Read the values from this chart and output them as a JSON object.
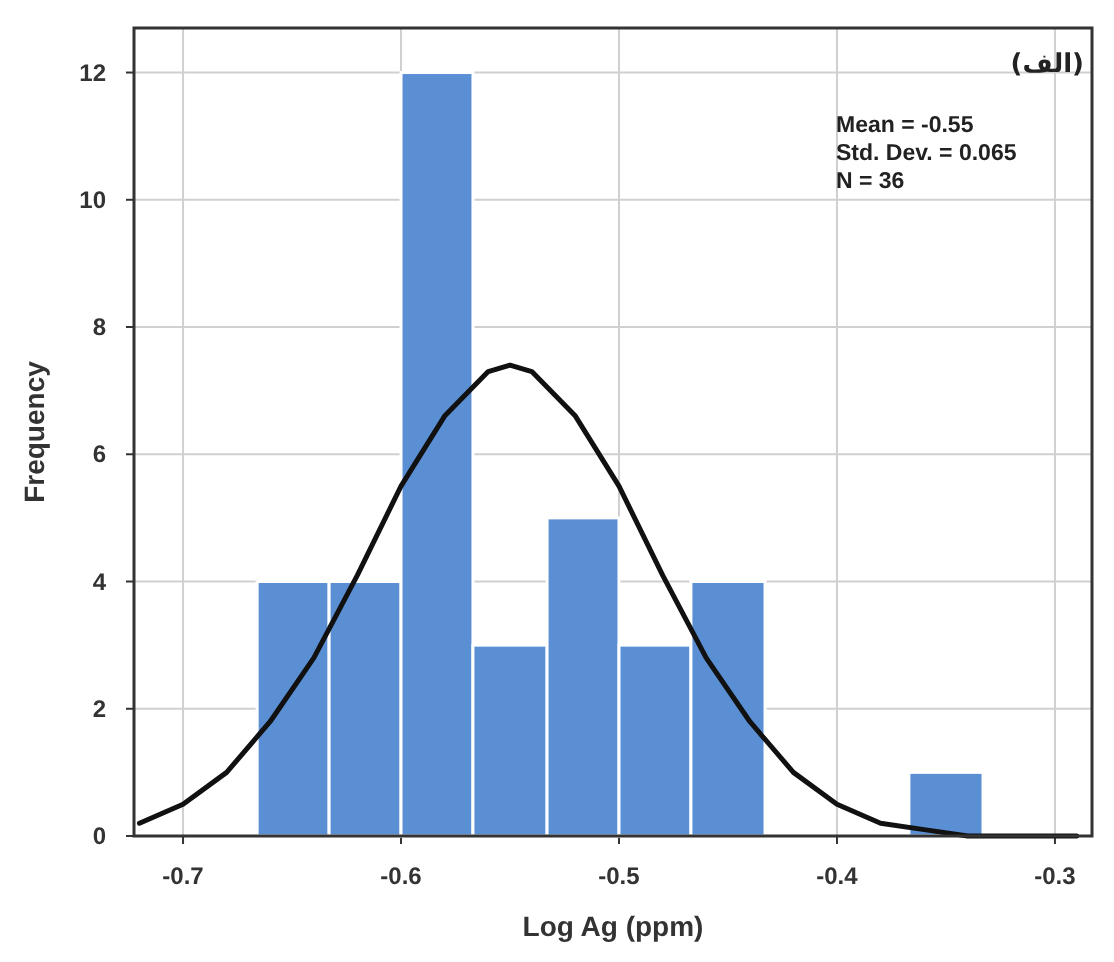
{
  "chart_data": {
    "type": "histogram",
    "xlabel": "Log Ag (ppm)",
    "ylabel": "Frequency",
    "series": [
      {
        "type": "histogram",
        "color": "#5b8fd4",
        "bins": [
          -0.666,
          -0.633,
          -0.6,
          -0.567,
          -0.533,
          -0.5,
          -0.467,
          -0.433
        ],
        "values": [
          4,
          4,
          12,
          3,
          5,
          3,
          4
        ]
      },
      {
        "type": "histogram",
        "color": "#5b8fd4",
        "bins": [
          -0.367,
          -0.333
        ],
        "values": [
          1
        ]
      },
      {
        "type": "line",
        "color": "#111111",
        "x": [
          -0.72,
          -0.7,
          -0.68,
          -0.66,
          -0.64,
          -0.62,
          -0.6,
          -0.58,
          -0.56,
          -0.55,
          -0.54,
          -0.52,
          -0.5,
          -0.48,
          -0.46,
          -0.44,
          -0.42,
          -0.4,
          -0.38,
          -0.36,
          -0.34,
          -0.32,
          -0.29
        ],
        "values": [
          0.2,
          0.5,
          1.0,
          1.8,
          2.8,
          4.1,
          5.5,
          6.6,
          7.3,
          7.4,
          7.3,
          6.6,
          5.5,
          4.1,
          2.8,
          1.8,
          1.0,
          0.5,
          0.2,
          0.1,
          0.0,
          0.0,
          0.0
        ]
      }
    ],
    "xlim": [
      -0.7225,
      -0.283
    ],
    "xticks": [
      -0.7,
      -0.6,
      -0.5,
      -0.4,
      -0.3
    ],
    "ylim": [
      0,
      12.7
    ],
    "yticks": [
      0,
      2,
      4,
      6,
      8,
      10,
      12
    ],
    "grid": true,
    "annotations": [
      "(الف)",
      "Mean = -0.55",
      "Std. Dev. = 0.065",
      "N = 36"
    ]
  }
}
